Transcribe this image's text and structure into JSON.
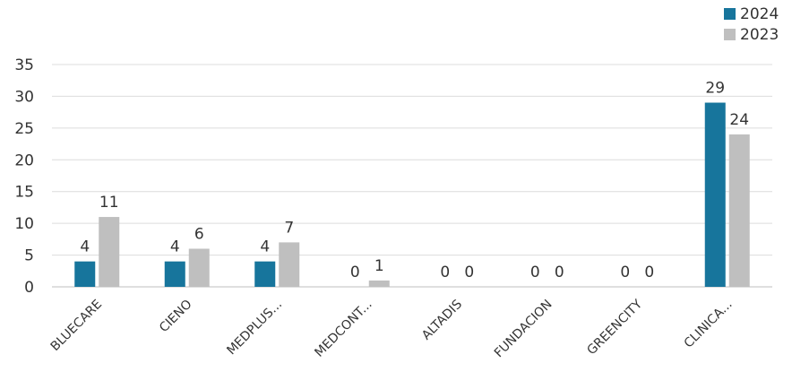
{
  "chart_data": {
    "type": "bar",
    "categories": [
      "BLUECARE",
      "CIENO",
      "MEDPLUS...",
      "MEDCONT...",
      "ALTADIS",
      "FUNDACION",
      "GREENCITY",
      "CLINICA..."
    ],
    "series": [
      {
        "name": "2024",
        "values": [
          4,
          4,
          4,
          0,
          0,
          0,
          0,
          29
        ],
        "color": "#17759c"
      },
      {
        "name": "2023",
        "values": [
          11,
          6,
          7,
          1,
          0,
          0,
          0,
          24
        ],
        "color": "#bfbfbf"
      }
    ],
    "yticks": [
      0,
      5,
      10,
      15,
      20,
      25,
      30,
      35
    ],
    "ylim": [
      0,
      35
    ],
    "grid": true,
    "legend_position": "top-right"
  }
}
